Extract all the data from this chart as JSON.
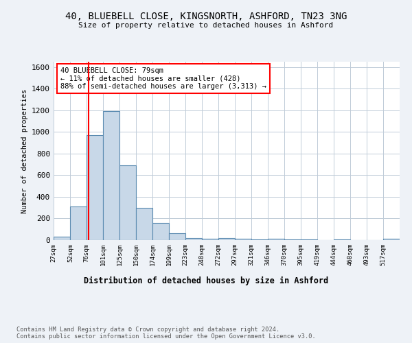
{
  "title_line1": "40, BLUEBELL CLOSE, KINGSNORTH, ASHFORD, TN23 3NG",
  "title_line2": "Size of property relative to detached houses in Ashford",
  "xlabel": "Distribution of detached houses by size in Ashford",
  "ylabel": "Number of detached properties",
  "categories": [
    "27sqm",
    "52sqm",
    "76sqm",
    "101sqm",
    "125sqm",
    "150sqm",
    "174sqm",
    "199sqm",
    "223sqm",
    "248sqm",
    "272sqm",
    "297sqm",
    "321sqm",
    "346sqm",
    "370sqm",
    "395sqm",
    "419sqm",
    "444sqm",
    "468sqm",
    "493sqm",
    "517sqm"
  ],
  "values": [
    30,
    310,
    970,
    1190,
    690,
    300,
    160,
    65,
    20,
    15,
    20,
    15,
    5,
    10,
    5,
    5,
    0,
    5,
    0,
    0,
    10
  ],
  "bar_color": "#c8d8e8",
  "bar_edge_color": "#5a8ab0",
  "red_line_x": 79,
  "bin_edges": [
    27,
    52,
    76,
    101,
    125,
    150,
    174,
    199,
    223,
    248,
    272,
    297,
    321,
    346,
    370,
    395,
    419,
    444,
    468,
    493,
    517,
    542
  ],
  "annotation_text": "40 BLUEBELL CLOSE: 79sqm\n← 11% of detached houses are smaller (428)\n88% of semi-detached houses are larger (3,313) →",
  "annotation_box_color": "white",
  "annotation_box_edge_color": "red",
  "ylim": [
    0,
    1650
  ],
  "footer_text": "Contains HM Land Registry data © Crown copyright and database right 2024.\nContains public sector information licensed under the Open Government Licence v3.0.",
  "background_color": "#eef2f7",
  "plot_bg_color": "white",
  "grid_color": "#c0ccd8"
}
